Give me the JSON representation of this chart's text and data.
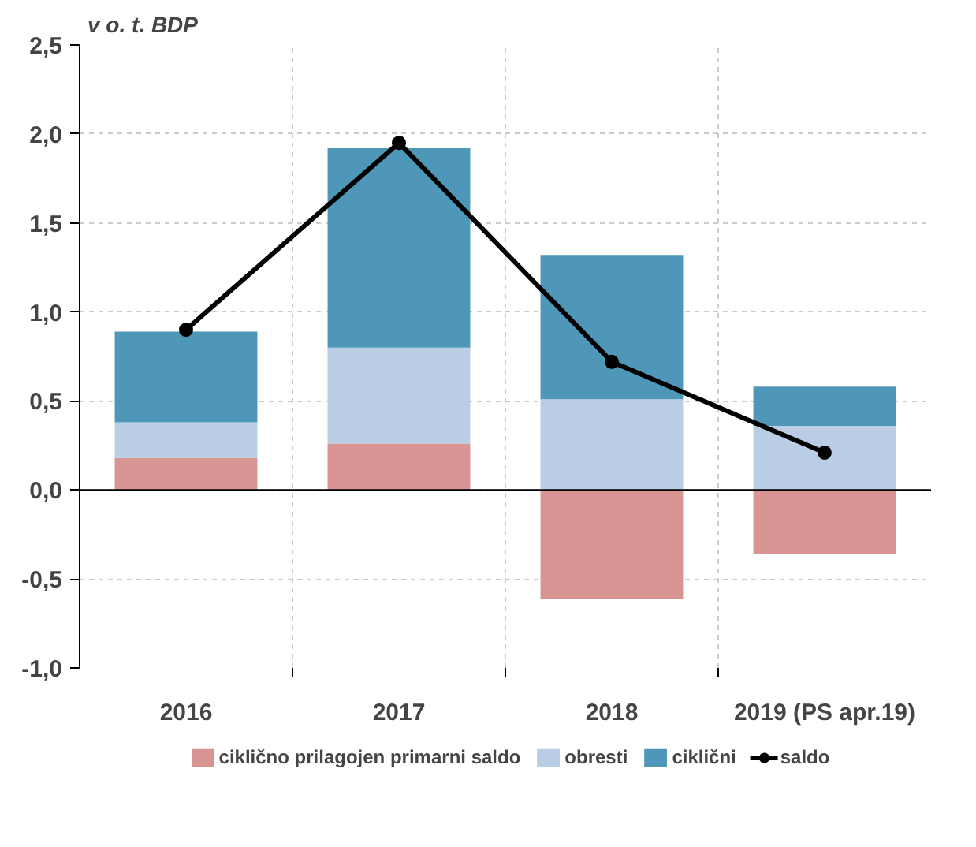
{
  "chart_data": {
    "type": "bar",
    "stacked": true,
    "ylabel": "v o. t. BDP",
    "categories": [
      "2016",
      "2017",
      "2018",
      "2019 (PS apr.19)"
    ],
    "series": [
      {
        "name": "ciklično prilagojen primarni saldo",
        "color": "#d99594",
        "values": [
          0.18,
          0.26,
          -0.61,
          -0.36
        ]
      },
      {
        "name": "obresti",
        "color": "#b9cde5",
        "values": [
          0.2,
          0.54,
          0.51,
          0.36
        ]
      },
      {
        "name": "ciklični",
        "color": "#4f97b8",
        "values": [
          0.51,
          1.12,
          0.81,
          0.22
        ]
      },
      {
        "name": "saldo",
        "type": "line",
        "color": "#000000",
        "marker": "circle",
        "values": [
          0.9,
          1.95,
          0.72,
          0.21
        ]
      }
    ],
    "ylim": [
      -1.0,
      2.5
    ],
    "yticks": [
      {
        "value": -1.0,
        "label": "-1,0"
      },
      {
        "value": -0.5,
        "label": "-0,5"
      },
      {
        "value": 0.0,
        "label": "0,0"
      },
      {
        "value": 0.5,
        "label": "0,5"
      },
      {
        "value": 1.0,
        "label": "1,0"
      },
      {
        "value": 1.5,
        "label": "1,5"
      },
      {
        "value": 2.0,
        "label": "2,0"
      },
      {
        "value": 2.5,
        "label": "2,5"
      }
    ],
    "grid": true,
    "legend": "bottom"
  }
}
